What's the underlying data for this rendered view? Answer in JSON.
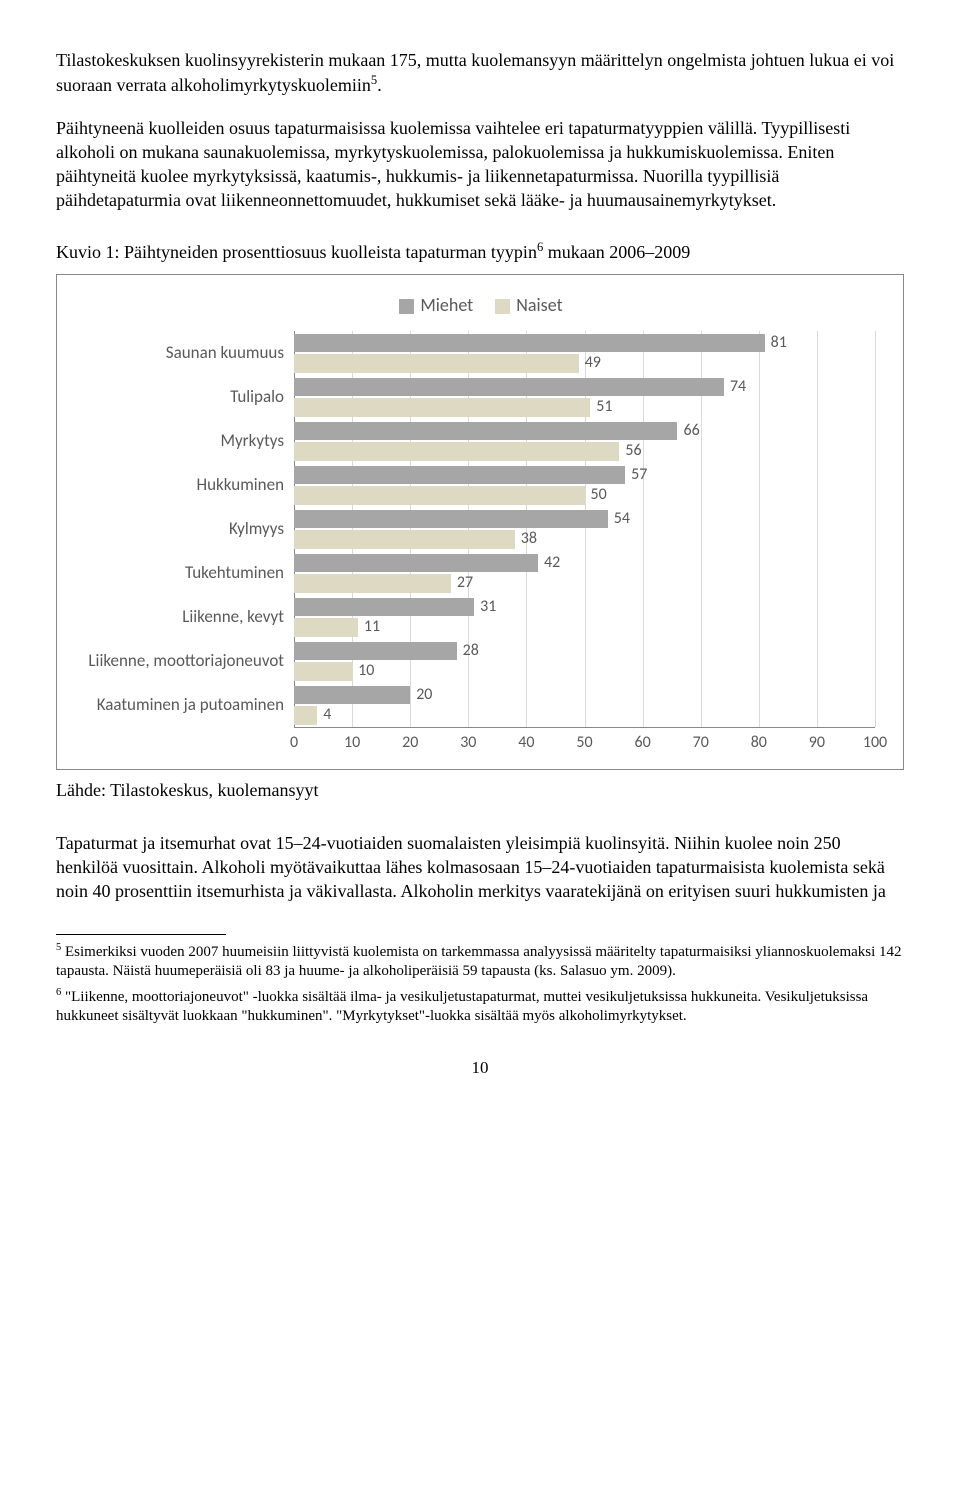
{
  "para1": "Tilastokeskuksen kuolinsyyrekisterin mukaan 175, mutta kuolemansyyn määrittelyn ongelmista johtuen lukua ei voi suoraan verrata alkoholimyrkytyskuolemiin",
  "sup1": "5",
  "para1_tail": ".",
  "para2": "Päihtyneenä kuolleiden osuus tapaturmaisissa kuolemissa vaihtelee eri tapaturmatyyppien välillä. Tyypillisesti alkoholi on mukana saunakuolemissa, myrkytyskuolemissa, palokuolemissa ja hukkumiskuolemissa. Eniten päihtyneitä kuolee myrkytyksissä, kaatumis-, hukkumis- ja liikennetapaturmissa. Nuorilla tyypillisiä päihdetapaturmia ovat liikenneonnettomuudet, hukkumiset sekä lääke- ja huumausainemyrkytykset.",
  "chart_title_a": "Kuvio 1: Päihtyneiden prosenttiosuus kuolleista tapaturman tyypin",
  "chart_title_sup": "6",
  "chart_title_b": " mukaan 2006–2009",
  "caption": "Lähde: Tilastokeskus, kuolemansyyt",
  "para3": "Tapaturmat ja itsemurhat ovat 15–24-vuotiaiden suomalaisten yleisimpiä kuolinsyitä. Niihin kuolee noin 250 henkilöä vuosittain. Alkoholi myötävaikuttaa lähes kolmasosaan 15–24-vuotiaiden tapaturmaisista kuolemista sekä noin 40 prosenttiin itsemurhista ja väkivallasta. Alkoholin merkitys vaaratekijänä on erityisen suuri hukkumisten ja",
  "footnote5_sup": "5",
  "footnote5": " Esimerkiksi vuoden 2007 huumeisiin liittyvistä kuolemista on tarkemmassa analyysissä määritelty tapaturmaisiksi yliannoskuolemaksi 142 tapausta. Näistä huumeperäisiä oli 83 ja huume- ja alkoholiperäisiä 59 tapausta (ks. Salasuo ym. 2009).",
  "footnote6_sup": "6",
  "footnote6": " \"Liikenne, moottoriajoneuvot\" -luokka sisältää ilma- ja vesikuljetustapaturmat, muttei vesikuljetuksissa hukkuneita. Vesikuljetuksissa hukkuneet sisältyvät luokkaan \"hukkuminen\". \"Myrkytykset\"-luokka sisältää myös alkoholimyrkytykset.",
  "page_num": "10",
  "chart": {
    "legend_m": "Miehet",
    "legend_f": "Naiset",
    "color_m": "#a6a6a6",
    "color_f": "#ddd9c3",
    "label_color": "#595959",
    "grid_color": "#d9d9d9",
    "xlim": 100,
    "xtick_step": 10,
    "xticks": [
      "0",
      "10",
      "20",
      "30",
      "40",
      "50",
      "60",
      "70",
      "80",
      "90",
      "100"
    ],
    "categories": [
      {
        "label": "Saunan kuumuus",
        "m": 81,
        "f": 49
      },
      {
        "label": "Tulipalo",
        "m": 74,
        "f": 51
      },
      {
        "label": "Myrkytys",
        "m": 66,
        "f": 56
      },
      {
        "label": "Hukkuminen",
        "m": 57,
        "f": 50
      },
      {
        "label": "Kylmyys",
        "m": 54,
        "f": 38
      },
      {
        "label": "Tukehtuminen",
        "m": 42,
        "f": 27
      },
      {
        "label": "Liikenne, kevyt",
        "m": 31,
        "f": 11
      },
      {
        "label": "Liikenne, moottoriajoneuvot",
        "m": 28,
        "f": 10
      },
      {
        "label": "Kaatuminen ja putoaminen",
        "m": 20,
        "f": 4
      }
    ]
  }
}
